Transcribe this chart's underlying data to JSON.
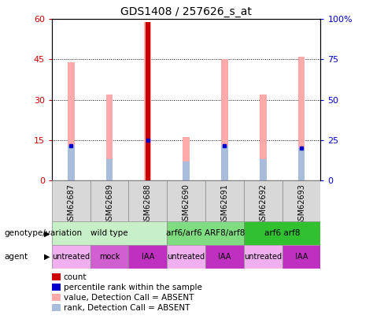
{
  "title": "GDS1408 / 257626_s_at",
  "samples": [
    "GSM62687",
    "GSM62689",
    "GSM62688",
    "GSM62690",
    "GSM62691",
    "GSM62692",
    "GSM62693"
  ],
  "pink_bar_heights": [
    44,
    32,
    59,
    16,
    45,
    32,
    46
  ],
  "dark_red_bar_heights": [
    0,
    0,
    59,
    0,
    0,
    0,
    0
  ],
  "blue_dot_heights": [
    13,
    0,
    15,
    0,
    13,
    0,
    12
  ],
  "light_blue_bar_heights": [
    13,
    8,
    0,
    7,
    13,
    8,
    12
  ],
  "ylim_left": [
    0,
    60
  ],
  "ylim_right": [
    0,
    100
  ],
  "yticks_left": [
    0,
    15,
    30,
    45,
    60
  ],
  "yticks_right": [
    0,
    25,
    50,
    75,
    100
  ],
  "ytick_labels_left": [
    "0",
    "15",
    "30",
    "45",
    "60"
  ],
  "ytick_labels_right": [
    "0",
    "25",
    "50",
    "75",
    "100%"
  ],
  "genotype_groups": [
    {
      "label": "wild type",
      "start": 0,
      "end": 3,
      "color": "#c8f0c8"
    },
    {
      "label": "arf6/arf6 ARF8/arf8",
      "start": 3,
      "end": 5,
      "color": "#80dc80"
    },
    {
      "label": "arf6 arf8",
      "start": 5,
      "end": 7,
      "color": "#30c030"
    }
  ],
  "agent_groups": [
    {
      "label": "untreated",
      "start": 0,
      "end": 1,
      "color": "#f0b0f0"
    },
    {
      "label": "mock",
      "start": 1,
      "end": 2,
      "color": "#d060d0"
    },
    {
      "label": "IAA",
      "start": 2,
      "end": 3,
      "color": "#c030c0"
    },
    {
      "label": "untreated",
      "start": 3,
      "end": 4,
      "color": "#f0b0f0"
    },
    {
      "label": "IAA",
      "start": 4,
      "end": 5,
      "color": "#c030c0"
    },
    {
      "label": "untreated",
      "start": 5,
      "end": 6,
      "color": "#f0b0f0"
    },
    {
      "label": "IAA",
      "start": 6,
      "end": 7,
      "color": "#c030c0"
    }
  ],
  "legend_items": [
    {
      "label": "count",
      "color": "#cc0000"
    },
    {
      "label": "percentile rank within the sample",
      "color": "#0000cc"
    },
    {
      "label": "value, Detection Call = ABSENT",
      "color": "#ffaaaa"
    },
    {
      "label": "rank, Detection Call = ABSENT",
      "color": "#aabcdc"
    }
  ],
  "pink_bar_width": 0.18,
  "dark_red_bar_width": 0.12,
  "light_blue_bar_width": 0.18,
  "dark_red_color": "#cc0000",
  "pink_color": "#ffaaaa",
  "blue_dot_color": "#0000cc",
  "light_blue_color": "#aabcdc",
  "left_tick_color": "#cc0000",
  "right_tick_color": "#0000cc"
}
